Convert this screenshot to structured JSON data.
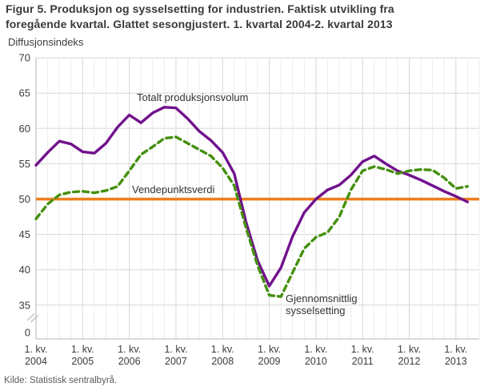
{
  "title": {
    "line1": "Figur 5. Produksjon og sysselsetting for industrien. Faktisk utvikling fra",
    "line2": "foregående kvartal. Glattet sesongjustert. 1. kvartal 2004-2. kvartal 2013"
  },
  "y_axis": {
    "title": "Diffusjonsindeks",
    "tick_labels": [
      "70",
      "65",
      "60",
      "55",
      "50",
      "45",
      "40",
      "35"
    ],
    "zero_label": "0",
    "axis_break": true
  },
  "x_axis": {
    "quarter_label": "1. kv.",
    "years": [
      "2004",
      "2005",
      "2006",
      "2007",
      "2008",
      "2009",
      "2010",
      "2011",
      "2012",
      "2013"
    ]
  },
  "source": "Kilde: Statistisk sentralbyrå.",
  "colors": {
    "production_line": "#71128C",
    "employment_line": "#45900F",
    "reference_line": "#EE7E1D",
    "grid_light": "#ececec",
    "grid_dark": "#d7d7d7",
    "axis": "#b5b5b5",
    "text": "#3c3c3c"
  },
  "chart_data": {
    "type": "line",
    "title": "Figur 5. Produksjon og sysselsetting for industrien. Faktisk utvikling fra foregående kvartal. Glattet sesongjustert. 1. kvartal 2004-2. kvartal 2013",
    "ylabel": "Diffusjonsindeks",
    "ylim": [
      35,
      70
    ],
    "axis_break_to_zero": true,
    "grid": true,
    "legend_position": "annotations-on-chart",
    "x": [
      "1. kv. 2004",
      "2. kv. 2004",
      "3. kv. 2004",
      "4. kv. 2004",
      "1. kv. 2005",
      "2. kv. 2005",
      "3. kv. 2005",
      "4. kv. 2005",
      "1. kv. 2006",
      "2. kv. 2006",
      "3. kv. 2006",
      "4. kv. 2006",
      "1. kv. 2007",
      "2. kv. 2007",
      "3. kv. 2007",
      "4. kv. 2007",
      "1. kv. 2008",
      "2. kv. 2008",
      "3. kv. 2008",
      "4. kv. 2008",
      "1. kv. 2009",
      "2. kv. 2009",
      "3. kv. 2009",
      "4. kv. 2009",
      "1. kv. 2010",
      "2. kv. 2010",
      "3. kv. 2010",
      "4. kv. 2010",
      "1. kv. 2011",
      "2. kv. 2011",
      "3. kv. 2011",
      "4. kv. 2011",
      "1. kv. 2012",
      "2. kv. 2012",
      "3. kv. 2012",
      "4. kv. 2012",
      "1. kv. 2013",
      "2. kv. 2013"
    ],
    "series": [
      {
        "name": "Totalt produksjonsvolum",
        "style": "solid",
        "color": "#71128C",
        "values": [
          54.8,
          56.6,
          58.2,
          57.8,
          56.7,
          56.5,
          57.9,
          60.2,
          61.9,
          60.8,
          62.2,
          63.0,
          62.9,
          61.4,
          59.6,
          58.3,
          56.6,
          53.6,
          46.8,
          41.3,
          37.7,
          40.3,
          44.7,
          48.1,
          50.0,
          51.3,
          52.0,
          53.4,
          55.3,
          56.1,
          55.0,
          54.0,
          53.4,
          52.7,
          51.9,
          51.1,
          50.4,
          49.6
        ]
      },
      {
        "name": "Gjennomsnittlig sysselsetting",
        "style": "dashed",
        "color": "#45900F",
        "values": [
          47.2,
          49.3,
          50.6,
          51.0,
          51.1,
          50.9,
          51.2,
          51.8,
          54.0,
          56.3,
          57.4,
          58.6,
          58.8,
          57.9,
          57.0,
          56.1,
          54.4,
          51.9,
          46.0,
          40.6,
          36.4,
          36.2,
          39.6,
          43.0,
          44.6,
          45.3,
          47.5,
          51.3,
          54.0,
          54.6,
          54.2,
          53.6,
          54.0,
          54.2,
          54.1,
          53.0,
          51.5,
          51.8
        ]
      }
    ],
    "reference_line": {
      "label": "Vendepunktsverdi",
      "value": 50,
      "color": "#EE7E1D"
    }
  }
}
